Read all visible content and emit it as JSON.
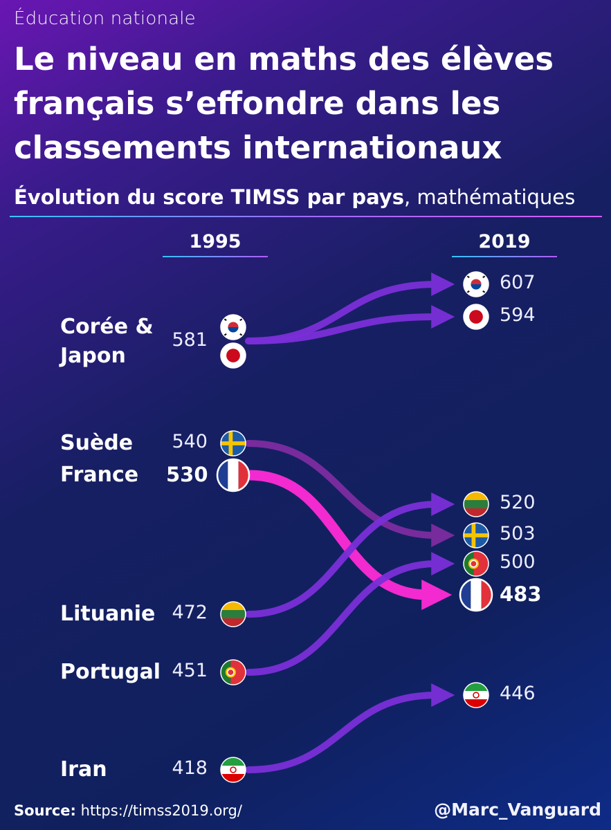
{
  "kicker": "Éducation nationale",
  "title_lines": [
    "Le niveau en maths des élèves",
    "français s’effondre dans les",
    "classements internationaux"
  ],
  "subtitle": {
    "bold": "Évolution du score TIMSS par pays",
    "normal": ", mathématiques"
  },
  "source": {
    "label": "Source:",
    "url": "https://timss2019.org/"
  },
  "credit": "@Marc_Vanguard",
  "colors": {
    "flow": "#7b2fd8",
    "highlight": "#ff2bd6",
    "sweden_flow": "#8a2ea8"
  },
  "chart_data": {
    "type": "slope",
    "title": "Évolution du score TIMSS par pays, mathématiques",
    "x": [
      "1995",
      "2019"
    ],
    "left_labels": [
      {
        "text_lines": [
          "Corée &",
          "Japon"
        ],
        "value": 581
      },
      {
        "text_lines": [
          "Suède"
        ],
        "value": 540
      },
      {
        "text_lines": [
          "France"
        ],
        "value": 530,
        "highlight": true
      },
      {
        "text_lines": [
          "Lituanie"
        ],
        "value": 472
      },
      {
        "text_lines": [
          "Portugal"
        ],
        "value": 451
      },
      {
        "text_lines": [
          "Iran"
        ],
        "value": 418
      }
    ],
    "series": [
      {
        "name": "Corée",
        "flag": "south-korea-flag-icon",
        "y1995": 581,
        "y2019": 607
      },
      {
        "name": "Japon",
        "flag": "japan-flag-icon",
        "y1995": 581,
        "y2019": 594
      },
      {
        "name": "Suède",
        "flag": "sweden-flag-icon",
        "y1995": 540,
        "y2019": 503
      },
      {
        "name": "France",
        "flag": "france-flag-icon",
        "y1995": 530,
        "y2019": 483,
        "highlight": true
      },
      {
        "name": "Lituanie",
        "flag": "lithuania-flag-icon",
        "y1995": 472,
        "y2019": 520
      },
      {
        "name": "Portugal",
        "flag": "portugal-flag-icon",
        "y1995": 451,
        "y2019": 500
      },
      {
        "name": "Iran",
        "flag": "iran-flag-icon",
        "y1995": 418,
        "y2019": 446
      }
    ]
  }
}
